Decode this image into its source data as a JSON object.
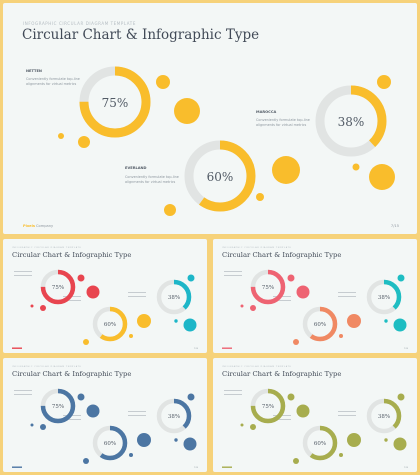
{
  "slides": [
    {
      "kicker": "INFOGRAPHIC CIRCULAR DIAGRAM TEMPLATE",
      "title": "Circular Chart & Infographic Type",
      "accent": "#f9bd2c",
      "track": "#e1e4e3",
      "charts": [
        {
          "label": "NETTEN",
          "value_text": "75%",
          "value": 0.75,
          "desc": [
            "Conveniently formulate top-line",
            "alignments for virtual metrics"
          ]
        },
        {
          "label": "EVERLAND",
          "value_text": "60%",
          "value": 0.6,
          "desc": [
            "Conveniently formulate top-line",
            "alignments for virtual metrics"
          ]
        },
        {
          "label": "MAROCCA",
          "value_text": "38%",
          "value": 0.38,
          "desc": [
            "Conveniently formulate top-line",
            "alignments for virtual metrics"
          ]
        }
      ],
      "footer_brand": "Pixels",
      "footer_company": "Company",
      "page_number": "7/15"
    },
    {
      "kicker": "INFOGRAPHIC CIRCULAR DIAGRAM TEMPLATE",
      "title": "Circular Chart & Infographic Type",
      "accents": [
        "#e8454f",
        "#f9bd2c",
        "#1db6c8"
      ],
      "track": "#e1e4e3",
      "values": [
        "75%",
        "60%",
        "38%"
      ],
      "page_number": "7/15"
    },
    {
      "kicker": "INFOGRAPHIC CIRCULAR DIAGRAM TEMPLATE",
      "title": "Circular Chart & Infographic Type",
      "accents": [
        "#ee6372",
        "#f08963",
        "#1ebdc2"
      ],
      "track": "#e1e4e3",
      "values": [
        "75%",
        "60%",
        "38%"
      ],
      "page_number": "7/15"
    },
    {
      "kicker": "INFOGRAPHIC CIRCULAR DIAGRAM TEMPLATE",
      "title": "Circular Chart & Infographic Type",
      "accent": "#4c76a3",
      "track": "#e1e4e3",
      "values": [
        "75%",
        "60%",
        "38%"
      ],
      "page_number": "7/15"
    },
    {
      "kicker": "INFOGRAPHIC CIRCULAR DIAGRAM TEMPLATE",
      "title": "Circular Chart & Infographic Type",
      "accent": "#a7ad4e",
      "track": "#e1e4e3",
      "values": [
        "75%",
        "60%",
        "38%"
      ],
      "page_number": "7/15"
    }
  ]
}
